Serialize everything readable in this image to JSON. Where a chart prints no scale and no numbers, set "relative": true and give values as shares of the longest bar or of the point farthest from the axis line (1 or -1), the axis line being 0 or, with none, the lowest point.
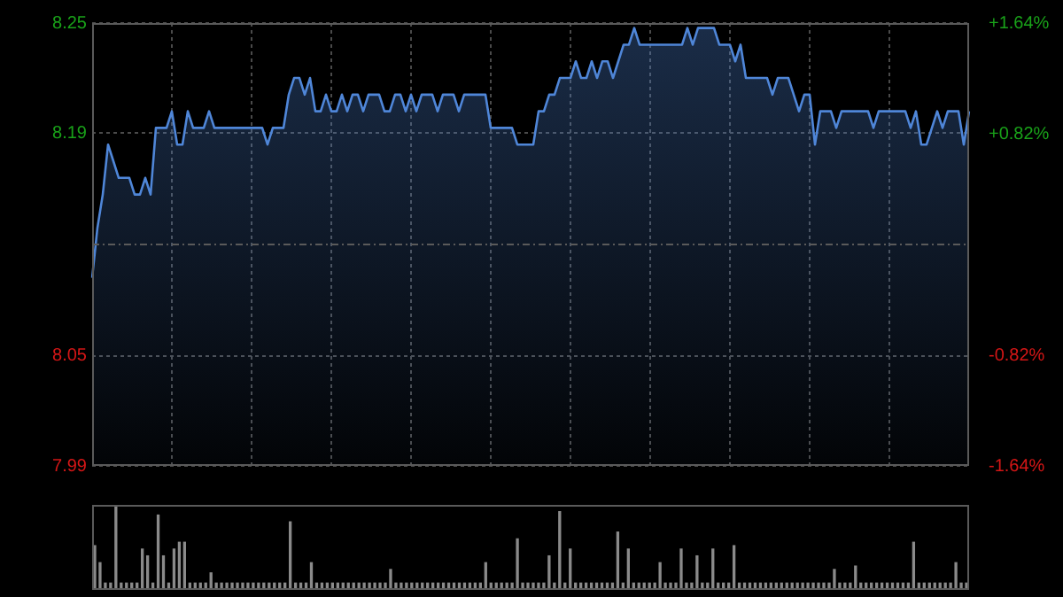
{
  "chart_data": [
    {
      "type": "area",
      "grid": true,
      "tick_labels": "y",
      "categories": [
        null,
        null,
        null,
        null,
        null,
        null,
        null,
        null,
        null,
        null,
        null,
        null,
        null,
        null,
        null,
        null,
        null,
        null,
        null,
        null,
        null,
        null,
        null,
        null,
        null,
        null,
        null,
        null,
        null,
        null,
        null,
        null,
        null,
        null,
        null,
        null,
        null,
        null,
        null,
        null,
        null,
        null,
        null,
        null,
        null,
        null,
        null,
        null,
        null,
        null,
        null,
        null,
        null,
        null,
        null,
        null,
        null,
        null,
        null,
        null,
        null,
        null,
        null,
        null,
        null,
        null,
        null,
        null,
        null,
        null,
        null,
        null,
        null,
        null,
        null,
        null,
        null,
        null,
        null,
        null,
        null,
        null,
        null,
        null,
        null,
        null,
        null,
        null,
        null,
        null,
        null,
        null,
        null,
        null,
        null,
        null,
        null,
        null,
        null,
        null,
        null,
        null,
        null,
        null,
        null,
        null,
        null,
        null,
        null,
        null,
        null,
        null,
        null,
        null,
        null,
        null,
        null,
        null,
        null,
        null,
        null,
        null,
        null,
        null,
        null,
        null,
        null,
        null,
        null,
        null,
        null,
        null,
        null,
        null,
        null,
        null,
        null,
        null,
        null,
        null,
        null,
        null,
        null,
        null,
        null,
        null,
        null,
        null,
        null,
        null,
        null,
        null,
        null,
        null,
        null,
        null,
        null,
        null,
        null,
        null,
        null,
        null,
        null,
        null,
        null,
        null
      ],
      "ylim": [
        7.987,
        8.253
      ],
      "yticks": [
        {
          "value": 7.987,
          "label": "7.99"
        },
        {
          "value": 8.053,
          "label": "8.05"
        },
        {
          "value": 8.187,
          "label": "8.19"
        },
        {
          "value": 8.253,
          "label": "8.25"
        }
      ],
      "y2lim": [
        -1.64,
        1.64
      ],
      "y2ticks": [
        {
          "value": -1.64,
          "label": "-1.64%"
        },
        {
          "value": -0.82,
          "label": "-0.82%"
        },
        {
          "value": 0.82,
          "label": "+0.82%"
        },
        {
          "value": 1.64,
          "label": "+1.64%"
        }
      ],
      "ref_lines": [
        {
          "axis": "y",
          "value": 8.12,
          "color": "#5a5a5a",
          "line_style": "dashdot"
        }
      ],
      "series": [
        {
          "color": "#4f86d8",
          "values": [
            8.1,
            8.13,
            8.15,
            8.18,
            8.17,
            8.16,
            8.16,
            8.16,
            8.15,
            8.15,
            8.16,
            8.15,
            8.19,
            8.19,
            8.19,
            8.2,
            8.18,
            8.18,
            8.2,
            8.19,
            8.19,
            8.19,
            8.2,
            8.19,
            8.19,
            8.19,
            8.19,
            8.19,
            8.19,
            8.19,
            8.19,
            8.19,
            8.19,
            8.18,
            8.19,
            8.19,
            8.19,
            8.21,
            8.22,
            8.22,
            8.21,
            8.22,
            8.2,
            8.2,
            8.21,
            8.2,
            8.2,
            8.21,
            8.2,
            8.21,
            8.21,
            8.2,
            8.21,
            8.21,
            8.21,
            8.2,
            8.2,
            8.21,
            8.21,
            8.2,
            8.21,
            8.2,
            8.21,
            8.21,
            8.21,
            8.2,
            8.21,
            8.21,
            8.21,
            8.2,
            8.21,
            8.21,
            8.21,
            8.21,
            8.21,
            8.19,
            8.19,
            8.19,
            8.19,
            8.19,
            8.18,
            8.18,
            8.18,
            8.18,
            8.2,
            8.2,
            8.21,
            8.21,
            8.22,
            8.22,
            8.22,
            8.23,
            8.22,
            8.22,
            8.23,
            8.22,
            8.23,
            8.23,
            8.22,
            8.23,
            8.24,
            8.24,
            8.25,
            8.24,
            8.24,
            8.24,
            8.24,
            8.24,
            8.24,
            8.24,
            8.24,
            8.24,
            8.25,
            8.24,
            8.25,
            8.25,
            8.25,
            8.25,
            8.24,
            8.24,
            8.24,
            8.23,
            8.24,
            8.22,
            8.22,
            8.22,
            8.22,
            8.22,
            8.21,
            8.22,
            8.22,
            8.22,
            8.21,
            8.2,
            8.21,
            8.21,
            8.18,
            8.2,
            8.2,
            8.2,
            8.19,
            8.2,
            8.2,
            8.2,
            8.2,
            8.2,
            8.2,
            8.19,
            8.2,
            8.2,
            8.2,
            8.2,
            8.2,
            8.2,
            8.19,
            8.2,
            8.18,
            8.18,
            8.19,
            8.2,
            8.19,
            8.2,
            8.2,
            8.2,
            8.18,
            8.2
          ]
        }
      ]
    },
    {
      "type": "bar",
      "relative": true,
      "categories": [
        null,
        null,
        null,
        null,
        null,
        null,
        null,
        null,
        null,
        null,
        null,
        null,
        null,
        null,
        null,
        null,
        null,
        null,
        null,
        null,
        null,
        null,
        null,
        null,
        null,
        null,
        null,
        null,
        null,
        null,
        null,
        null,
        null,
        null,
        null,
        null,
        null,
        null,
        null,
        null,
        null,
        null,
        null,
        null,
        null,
        null,
        null,
        null,
        null,
        null,
        null,
        null,
        null,
        null,
        null,
        null,
        null,
        null,
        null,
        null,
        null,
        null,
        null,
        null,
        null,
        null,
        null,
        null,
        null,
        null,
        null,
        null,
        null,
        null,
        null,
        null,
        null,
        null,
        null,
        null,
        null,
        null,
        null,
        null,
        null,
        null,
        null,
        null,
        null,
        null,
        null,
        null,
        null,
        null,
        null,
        null,
        null,
        null,
        null,
        null,
        null,
        null,
        null,
        null,
        null,
        null,
        null,
        null,
        null,
        null,
        null,
        null,
        null,
        null,
        null,
        null,
        null,
        null,
        null,
        null,
        null,
        null,
        null,
        null,
        null,
        null,
        null,
        null,
        null,
        null,
        null,
        null,
        null,
        null,
        null,
        null,
        null,
        null,
        null,
        null,
        null,
        null,
        null,
        null,
        null,
        null,
        null,
        null,
        null,
        null,
        null,
        null,
        null,
        null,
        null,
        null,
        null,
        null,
        null,
        null,
        null,
        null,
        null,
        null,
        null,
        null
      ],
      "series": [
        {
          "color": "#8a8a8a",
          "values": [
            0.52,
            0.32,
            0.08,
            0.08,
            1,
            0.08,
            0.08,
            0.08,
            0.08,
            0.48,
            0.4,
            0.08,
            0.88,
            0.4,
            0.08,
            0.48,
            0.56,
            0.56,
            0.08,
            0.08,
            0.08,
            0.08,
            0.2,
            0.08,
            0.08,
            0.08,
            0.08,
            0.08,
            0.08,
            0.08,
            0.08,
            0.08,
            0.08,
            0.08,
            0.08,
            0.08,
            0.08,
            0.8,
            0.08,
            0.08,
            0.08,
            0.32,
            0.08,
            0.08,
            0.08,
            0.08,
            0.08,
            0.08,
            0.08,
            0.08,
            0.08,
            0.08,
            0.08,
            0.08,
            0.08,
            0.08,
            0.24,
            0.08,
            0.08,
            0.08,
            0.08,
            0.08,
            0.08,
            0.08,
            0.08,
            0.08,
            0.08,
            0.08,
            0.08,
            0.08,
            0.08,
            0.08,
            0.08,
            0.08,
            0.32,
            0.08,
            0.08,
            0.08,
            0.08,
            0.08,
            0.6,
            0.08,
            0.08,
            0.08,
            0.08,
            0.08,
            0.4,
            0.08,
            0.92,
            0.08,
            0.48,
            0.08,
            0.08,
            0.08,
            0.08,
            0.08,
            0.08,
            0.08,
            0.08,
            0.68,
            0.08,
            0.48,
            0.08,
            0.08,
            0.08,
            0.08,
            0.08,
            0.32,
            0.08,
            0.08,
            0.08,
            0.48,
            0.08,
            0.08,
            0.4,
            0.08,
            0.08,
            0.48,
            0.08,
            0.08,
            0.08,
            0.52,
            0.08,
            0.08,
            0.08,
            0.08,
            0.08,
            0.08,
            0.08,
            0.08,
            0.08,
            0.08,
            0.08,
            0.08,
            0.08,
            0.08,
            0.08,
            0.08,
            0.08,
            0.08,
            0.24,
            0.08,
            0.08,
            0.08,
            0.28,
            0.08,
            0.08,
            0.08,
            0.08,
            0.08,
            0.08,
            0.08,
            0.08,
            0.08,
            0.08,
            0.56,
            0.08,
            0.08,
            0.08,
            0.08,
            0.08,
            0.08,
            0.08,
            0.32,
            0.08,
            0.08
          ]
        }
      ]
    }
  ]
}
